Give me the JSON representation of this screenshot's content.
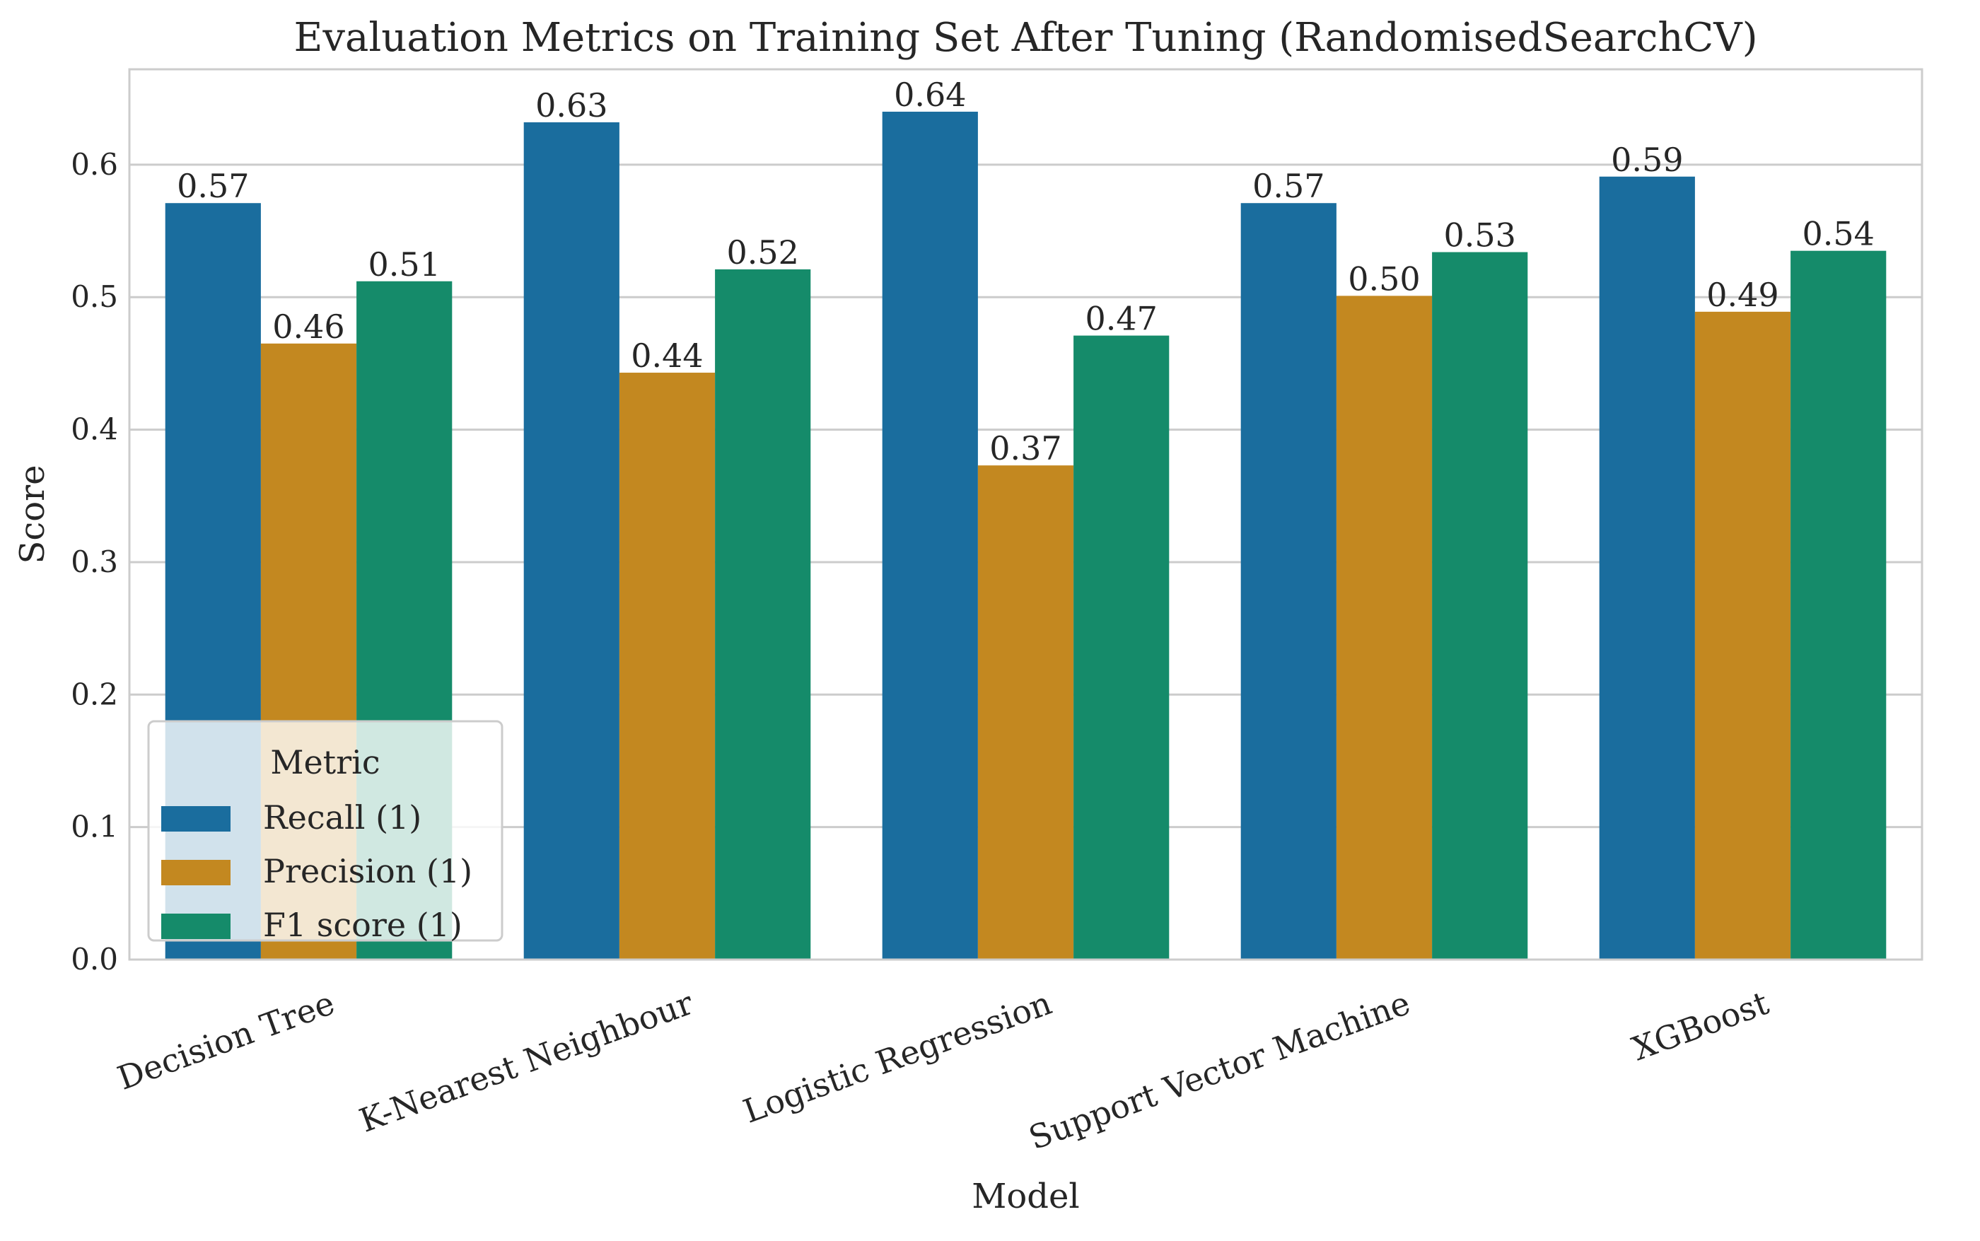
{
  "chart_data": {
    "type": "bar",
    "title": "Evaluation Metrics on Training Set After Tuning (RandomisedSearchCV)",
    "xlabel": "Model",
    "ylabel": "Score",
    "categories": [
      "Decision Tree",
      "K-Nearest Neighbour",
      "Logistic Regression",
      "Support Vector Machine",
      "XGBoost"
    ],
    "series": [
      {
        "name": "Recall (1)",
        "color": "#1a6d9e",
        "values": [
          0.571,
          0.632,
          0.64,
          0.571,
          0.591
        ],
        "labels": [
          "0.57",
          "0.63",
          "0.64",
          "0.57",
          "0.59"
        ]
      },
      {
        "name": "Precision (1)",
        "color": "#c38820",
        "values": [
          0.465,
          0.443,
          0.373,
          0.501,
          0.489
        ],
        "labels": [
          "0.46",
          "0.44",
          "0.37",
          "0.50",
          "0.49"
        ]
      },
      {
        "name": "F1 score (1)",
        "color": "#158b6a",
        "values": [
          0.512,
          0.521,
          0.471,
          0.534,
          0.535
        ],
        "labels": [
          "0.51",
          "0.52",
          "0.47",
          "0.53",
          "0.54"
        ]
      }
    ],
    "ylim": [
      0,
      0.672
    ],
    "yticks": [
      "0.0",
      "0.1",
      "0.2",
      "0.3",
      "0.4",
      "0.5",
      "0.6"
    ],
    "ytick_values": [
      0,
      0.1,
      0.2,
      0.3,
      0.4,
      0.5,
      0.6
    ],
    "grid": "horizontal",
    "legend": {
      "title": "Metric",
      "placement": "lower-left"
    }
  }
}
